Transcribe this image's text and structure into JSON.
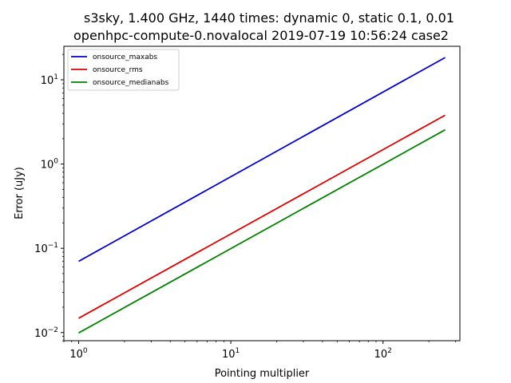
{
  "chart_data": {
    "type": "line",
    "title": [
      "s3sky, 1.400 GHz, 1440 times: dynamic 0, static 0.1, 0.01",
      "openhpc-compute-0.novalocal 2019-07-19 10:56:24 case2"
    ],
    "xlabel": "Pointing multiplier",
    "ylabel": "Error (uJy)",
    "xscale": "log",
    "yscale": "log",
    "xlim": [
      0.8,
      320
    ],
    "ylim": [
      0.008,
      25
    ],
    "xticks": [
      {
        "value": 1,
        "base": "10",
        "exp": "0"
      },
      {
        "value": 10,
        "base": "10",
        "exp": "1"
      },
      {
        "value": 100,
        "base": "10",
        "exp": "2"
      }
    ],
    "yticks": [
      {
        "value": 0.01,
        "base": "10",
        "exp": "−2"
      },
      {
        "value": 0.1,
        "base": "10",
        "exp": "−1"
      },
      {
        "value": 1,
        "base": "10",
        "exp": "0"
      },
      {
        "value": 10,
        "base": "10",
        "exp": "1"
      }
    ],
    "legend_position": "upper-left",
    "grid": false,
    "series": [
      {
        "name": "onsource_maxabs",
        "color": "#0000cc",
        "x": [
          1,
          256
        ],
        "y": [
          0.07,
          18.4
        ]
      },
      {
        "name": "onsource_rms",
        "color": "#dd0000",
        "x": [
          1,
          256
        ],
        "y": [
          0.0148,
          3.8
        ]
      },
      {
        "name": "onsource_medianabs",
        "color": "#007f00",
        "x": [
          1,
          256
        ],
        "y": [
          0.0099,
          2.55
        ]
      }
    ]
  }
}
